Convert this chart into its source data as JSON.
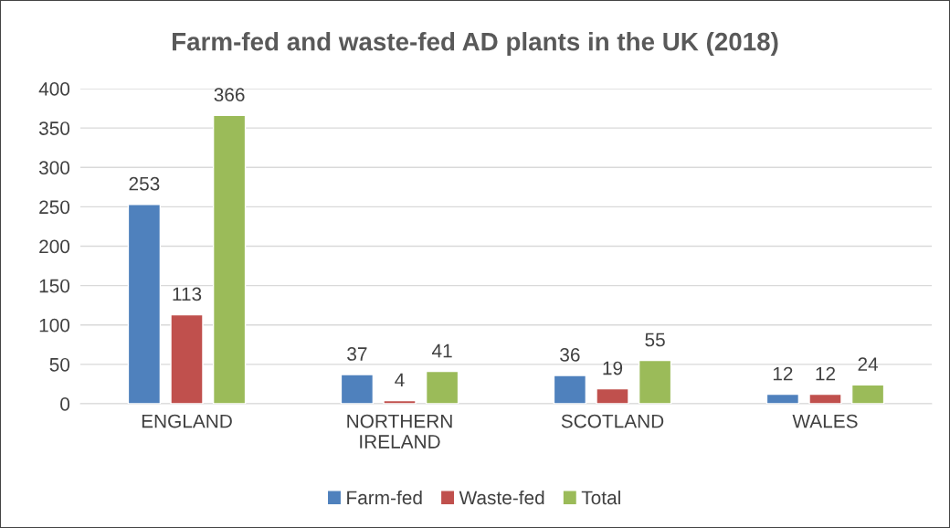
{
  "chart_data": {
    "type": "bar",
    "title": "Farm-fed and waste-fed AD plants in the UK (2018)",
    "categories": [
      "ENGLAND",
      "NORTHERN IRELAND",
      "SCOTLAND",
      "WALES"
    ],
    "series": [
      {
        "name": "Farm-fed",
        "color": "#4f81bd",
        "values": [
          253,
          37,
          36,
          12
        ]
      },
      {
        "name": "Waste-fed",
        "color": "#c0504d",
        "values": [
          113,
          4,
          19,
          12
        ]
      },
      {
        "name": "Total",
        "color": "#9bbb59",
        "values": [
          366,
          41,
          55,
          24
        ]
      }
    ],
    "ylim": [
      0,
      400
    ],
    "yticks": [
      0,
      50,
      100,
      150,
      200,
      250,
      300,
      350,
      400
    ],
    "grid": "y",
    "legend": "bottom",
    "data_labels": true
  }
}
